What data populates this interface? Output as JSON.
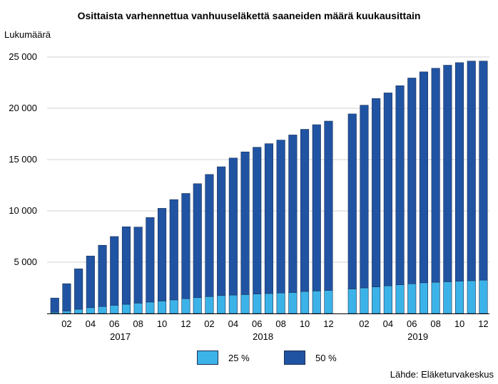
{
  "chart_data": {
    "type": "bar",
    "stacked": true,
    "title": "Osittaista varhennettua vanhuuseläkettä saaneiden määrä kuukausittain",
    "ylabel": "Lukumäärä",
    "ylim": [
      0,
      25000
    ],
    "yticks": [
      0,
      5000,
      10000,
      15000,
      20000,
      25000
    ],
    "ytick_labels": [
      "",
      "5 000",
      "10 000",
      "15 000",
      "20 000",
      "25 000"
    ],
    "grid": true,
    "legend_position": "bottom",
    "groups": [
      {
        "year": "2017",
        "months": [
          "01",
          "02",
          "03",
          "04",
          "05",
          "06",
          "07",
          "08",
          "09",
          "10",
          "11",
          "12"
        ],
        "month_labels": [
          "",
          "02",
          "",
          "04",
          "",
          "06",
          "",
          "08",
          "",
          "10",
          "",
          "12"
        ],
        "series": [
          {
            "name": "25 %",
            "values": [
              120,
              250,
              420,
              570,
              680,
              800,
              900,
              1020,
              1120,
              1220,
              1330,
              1450
            ]
          },
          {
            "name": "50 %",
            "values": [
              1380,
              2650,
              3930,
              5030,
              5970,
              6700,
              7550,
              7400,
              8230,
              9030,
              9770,
              10250
            ]
          }
        ]
      },
      {
        "year": "2018",
        "months": [
          "01",
          "02",
          "03",
          "04",
          "05",
          "06",
          "07",
          "08",
          "09",
          "10",
          "11",
          "12"
        ],
        "month_labels": [
          "",
          "02",
          "",
          "04",
          "",
          "06",
          "",
          "08",
          "",
          "10",
          "",
          "12"
        ],
        "series": [
          {
            "name": "25 %",
            "values": [
              1550,
              1650,
              1750,
              1800,
              1850,
              1900,
              1950,
              2000,
              2050,
              2150,
              2200,
              2250
            ]
          },
          {
            "name": "50 %",
            "values": [
              11100,
              11900,
              12550,
              13350,
              13900,
              14300,
              14600,
              14900,
              15350,
              15800,
              16200,
              16500
            ]
          }
        ]
      },
      {
        "year": "2019",
        "months": [
          "01",
          "02",
          "03",
          "04",
          "05",
          "06",
          "07",
          "08",
          "09",
          "10",
          "11",
          "12"
        ],
        "month_labels": [
          "",
          "02",
          "",
          "04",
          "",
          "06",
          "",
          "08",
          "",
          "10",
          "",
          "12"
        ],
        "series": [
          {
            "name": "25 %",
            "values": [
              2400,
              2500,
              2600,
              2700,
              2800,
              2900,
              3000,
              3050,
              3100,
              3150,
              3200,
              3250
            ]
          },
          {
            "name": "50 %",
            "values": [
              17050,
              17800,
              18350,
              18800,
              19400,
              20050,
              20550,
              20850,
              21100,
              21300,
              21400,
              21350
            ]
          }
        ]
      }
    ],
    "colors": {
      "25 %": "#3cb3e8",
      "50 %": "#2054a3"
    }
  },
  "source": "Lähde: Eläketurvakeskus",
  "legend": [
    {
      "label": "25 %",
      "color": "#3cb3e8"
    },
    {
      "label": "50 %",
      "color": "#2054a3"
    }
  ]
}
